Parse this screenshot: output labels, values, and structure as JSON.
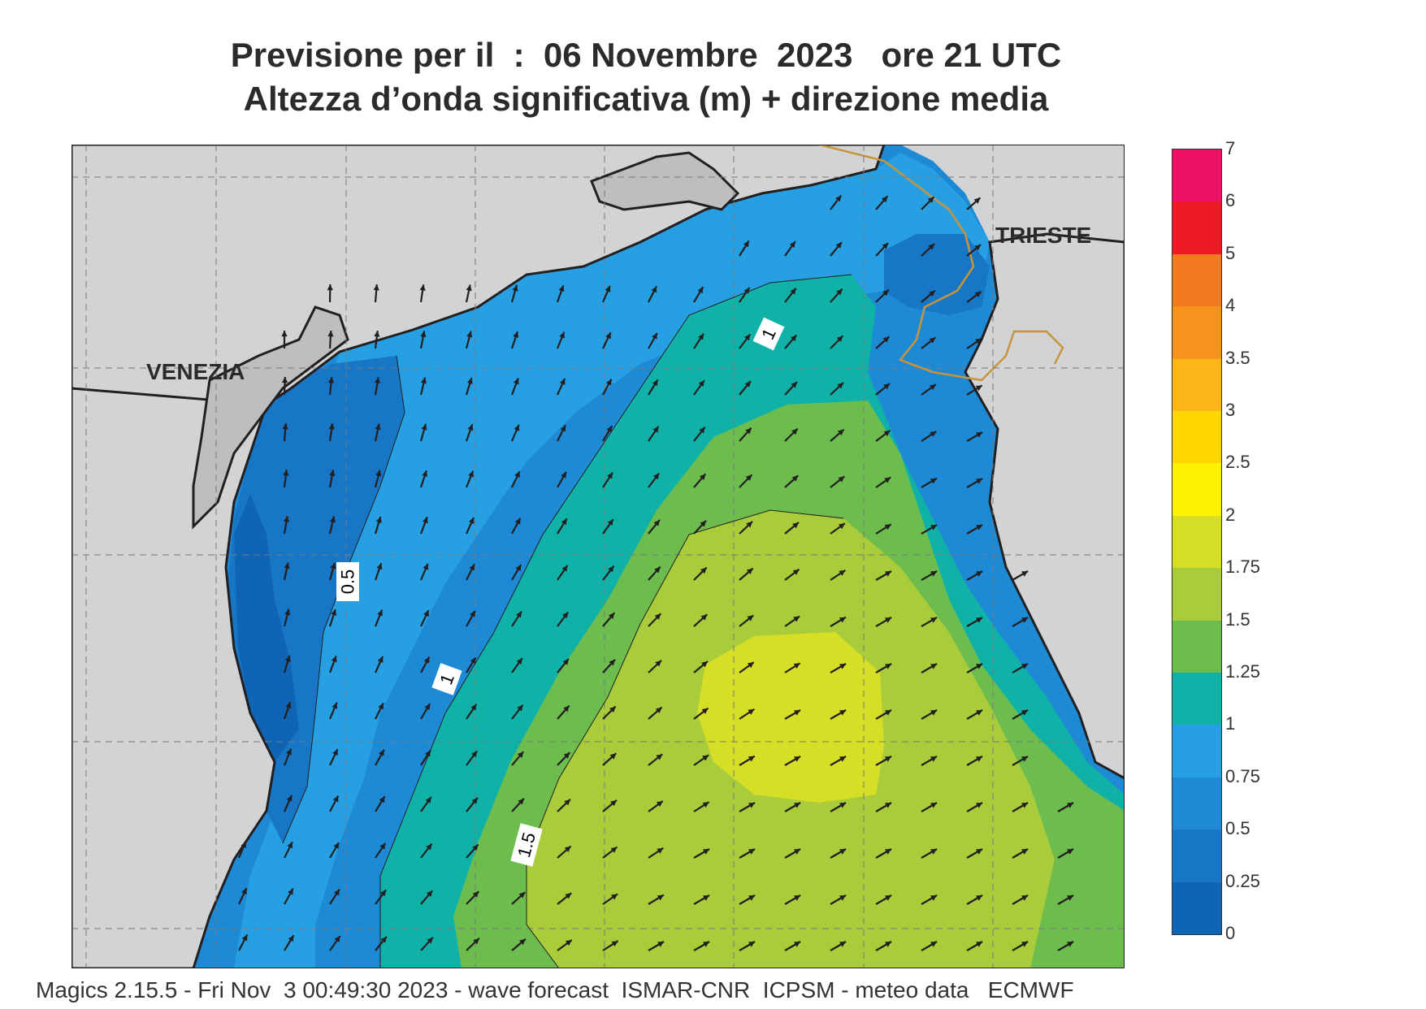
{
  "title": {
    "line1": "Previsione per il  :  06 Novembre  2023   ore 21 UTC",
    "line2": "Altezza d’onda significativa (m) + direzione media"
  },
  "cities": {
    "venezia": "VENEZIA",
    "trieste": "TRIESTE"
  },
  "contour_labels": [
    "1",
    "0.5",
    "1",
    "1.5"
  ],
  "colorbar": {
    "levels": [
      "0",
      "0.25",
      "0.5",
      "0.75",
      "1",
      "1.25",
      "1.5",
      "1.75",
      "2",
      "2.5",
      "3",
      "3.5",
      "4",
      "5",
      "6",
      "7"
    ],
    "colors": [
      "#0f64b4",
      "#1776c6",
      "#1e8ad6",
      "#26a0e2",
      "#10b2a8",
      "#6cbc4e",
      "#a8cc3a",
      "#d7de26",
      "#fff200",
      "#ffd700",
      "#fbb517",
      "#f7941d",
      "#f47a20",
      "#ed1c24",
      "#ec1367"
    ]
  },
  "map": {
    "land_color": "#d1d3d4",
    "coast_color": "#231f20",
    "border_color": "#c8943a",
    "arrow_color": "#231f20",
    "arrow_direction": "north-east, turning north near the coast"
  },
  "footer": "Magics 2.15.5 - Fri Nov  3 00:49:30 2023 - wave forecast  ISMAR-CNR  ICPSM - meteo data   ECMWF"
}
